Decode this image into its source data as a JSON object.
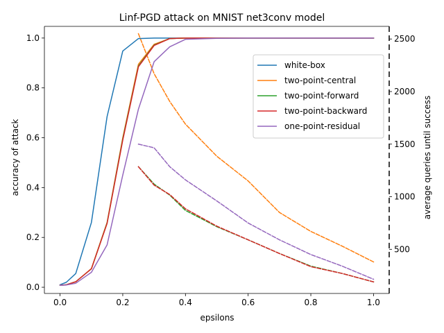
{
  "chart_data": {
    "type": "line",
    "title": "Linf-PGD attack on MNIST net3conv model",
    "xlabel": "epsilons",
    "ylabel": "accuracy of attack",
    "y2label": "average queries until success",
    "xlim": [
      -0.05,
      1.05
    ],
    "ylim": [
      -0.0249,
      1.0469
    ],
    "y2lim": [
      80,
      2620
    ],
    "xticks": [
      "0.0",
      "0.2",
      "0.4",
      "0.6",
      "0.8",
      "1.0"
    ],
    "yticks": [
      "0.0",
      "0.2",
      "0.4",
      "0.6",
      "0.8",
      "1.0"
    ],
    "y2ticks": [
      "500",
      "1000",
      "1500",
      "2000",
      "2500"
    ],
    "grid": false,
    "legend_position": "upper-right",
    "series": [
      {
        "name": "white-box",
        "color": "#1f77b4",
        "axis": "left",
        "style": "solid",
        "x": [
          0.0,
          0.02,
          0.05,
          0.1,
          0.15,
          0.2,
          0.25,
          0.3,
          0.35,
          0.4,
          0.5,
          0.6,
          0.7,
          0.8,
          0.9,
          1.0
        ],
        "y": [
          0.01,
          0.02,
          0.055,
          0.26,
          0.685,
          0.948,
          0.998,
          1.0,
          1.0,
          1.0,
          1.0,
          1.0,
          1.0,
          1.0,
          1.0,
          1.0
        ]
      },
      {
        "name": "two-point-central",
        "color": "#ff7f0e",
        "axis": "left",
        "style": "solid",
        "x": [
          0.0,
          0.02,
          0.05,
          0.1,
          0.15,
          0.2,
          0.25,
          0.3,
          0.35,
          0.4,
          0.5,
          0.6,
          0.7,
          0.8,
          0.9,
          1.0
        ],
        "y": [
          0.008,
          0.01,
          0.022,
          0.075,
          0.26,
          0.6,
          0.895,
          0.975,
          0.998,
          1.0,
          1.0,
          1.0,
          1.0,
          1.0,
          1.0,
          1.0
        ]
      },
      {
        "name": "two-point-forward",
        "color": "#2ca02c",
        "axis": "left",
        "style": "solid",
        "x": [
          0.0,
          0.02,
          0.05,
          0.1,
          0.15,
          0.2,
          0.25,
          0.3,
          0.35,
          0.4,
          0.5,
          0.6,
          0.7,
          0.8,
          0.9,
          1.0
        ],
        "y": [
          0.008,
          0.01,
          0.022,
          0.074,
          0.258,
          0.595,
          0.888,
          0.972,
          0.998,
          1.0,
          1.0,
          1.0,
          1.0,
          1.0,
          1.0,
          1.0
        ]
      },
      {
        "name": "two-point-backward",
        "color": "#d62728",
        "axis": "left",
        "style": "solid",
        "x": [
          0.0,
          0.02,
          0.05,
          0.1,
          0.15,
          0.2,
          0.25,
          0.3,
          0.35,
          0.4,
          0.5,
          0.6,
          0.7,
          0.8,
          0.9,
          1.0
        ],
        "y": [
          0.008,
          0.01,
          0.022,
          0.074,
          0.256,
          0.59,
          0.885,
          0.97,
          0.998,
          1.0,
          1.0,
          1.0,
          1.0,
          1.0,
          1.0,
          1.0
        ]
      },
      {
        "name": "one-point-residual",
        "color": "#9467bd",
        "axis": "left",
        "style": "solid",
        "x": [
          0.0,
          0.02,
          0.05,
          0.1,
          0.15,
          0.2,
          0.25,
          0.3,
          0.35,
          0.4,
          0.5,
          0.6,
          0.7,
          0.8,
          0.9,
          1.0
        ],
        "y": [
          0.008,
          0.009,
          0.016,
          0.06,
          0.17,
          0.45,
          0.715,
          0.905,
          0.965,
          0.995,
          0.999,
          1.0,
          1.0,
          1.0,
          1.0,
          1.0
        ]
      },
      {
        "name": "",
        "color": "#ff7f0e",
        "axis": "right",
        "style": "dashed",
        "x": [
          0.25,
          0.3,
          0.35,
          0.4,
          0.5,
          0.6,
          0.7,
          0.8,
          0.9,
          1.0
        ],
        "y": [
          2550,
          2170,
          1905,
          1690,
          1385,
          1150,
          850,
          670,
          530,
          380
        ]
      },
      {
        "name": "",
        "color": "#2ca02c",
        "axis": "right",
        "style": "dashed",
        "x": [
          0.25,
          0.3,
          0.35,
          0.4,
          0.5,
          0.6,
          0.7,
          0.8,
          0.9,
          1.0
        ],
        "y": [
          1285,
          1120,
          1015,
          870,
          715,
          590,
          460,
          340,
          270,
          190
        ]
      },
      {
        "name": "",
        "color": "#d62728",
        "axis": "right",
        "style": "dashed",
        "x": [
          0.25,
          0.3,
          0.35,
          0.4,
          0.5,
          0.6,
          0.7,
          0.8,
          0.9,
          1.0
        ],
        "y": [
          1285,
          1110,
          1020,
          885,
          720,
          590,
          460,
          335,
          270,
          190
        ]
      },
      {
        "name": "",
        "color": "#9467bd",
        "axis": "right",
        "style": "dashed",
        "x": [
          0.25,
          0.3,
          0.35,
          0.4,
          0.5,
          0.6,
          0.7,
          0.8,
          0.9,
          1.0
        ],
        "y": [
          1500,
          1465,
          1285,
          1160,
          960,
          750,
          590,
          450,
          340,
          215
        ]
      }
    ]
  }
}
